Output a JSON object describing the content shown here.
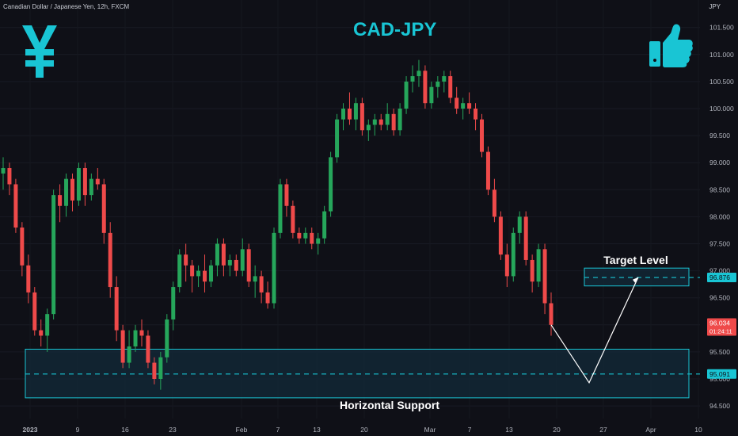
{
  "header": {
    "instrument": "Canadian Dollar / Japanese Yen, 12h, FXCM",
    "currency": "JPY",
    "title": "CAD-JPY"
  },
  "icons": {
    "left": "yen-icon",
    "right": "thumbs-up-icon"
  },
  "colors": {
    "bull": "#26a65b",
    "bear": "#ef4a4a",
    "accent": "#19c5d4",
    "box_fill": "#132a3a",
    "background": "#0f1017"
  },
  "annotations": {
    "target_label": "Target Level",
    "support_label": "Horizontal Support",
    "target_price": "96.876",
    "support_price": "95.091",
    "current_price": "96.034",
    "current_time": "01:24:11"
  },
  "chart_data": {
    "type": "candlestick",
    "y_ticks": [
      "101.500",
      "101.000",
      "100.500",
      "100.000",
      "99.500",
      "99.000",
      "98.500",
      "98.000",
      "97.500",
      "97.000",
      "96.500",
      "96.000",
      "95.500",
      "95.000",
      "94.500"
    ],
    "ylim": [
      94.3,
      101.9
    ],
    "x_ticks": [
      "2023",
      "9",
      "16",
      "23",
      "Feb",
      "7",
      "13",
      "20",
      "Mar",
      "7",
      "13",
      "20",
      "27",
      "Apr",
      "10"
    ],
    "target_zone": [
      96.72,
      97.05
    ],
    "support_zone": [
      94.65,
      95.55
    ],
    "target_price": 96.876,
    "support_price": 95.091,
    "current_price": 96.034,
    "projection": [
      [
        96.0,
        95.0
      ],
      [
        94.93,
        97.1
      ],
      [
        96.88,
        96.88
      ]
    ],
    "candles": [
      [
        98.8,
        99.1,
        98.5,
        98.9
      ],
      [
        98.9,
        99.0,
        98.4,
        98.6
      ],
      [
        98.6,
        98.7,
        97.7,
        97.8
      ],
      [
        97.8,
        97.9,
        96.9,
        97.1
      ],
      [
        97.1,
        97.3,
        96.4,
        96.6
      ],
      [
        96.6,
        96.7,
        95.8,
        95.9
      ],
      [
        95.9,
        96.1,
        95.6,
        95.8
      ],
      [
        95.8,
        96.3,
        95.5,
        96.2
      ],
      [
        96.2,
        98.5,
        96.1,
        98.4
      ],
      [
        98.4,
        98.6,
        97.9,
        98.2
      ],
      [
        98.2,
        98.8,
        98.0,
        98.7
      ],
      [
        98.7,
        98.8,
        98.1,
        98.3
      ],
      [
        98.3,
        99.0,
        98.2,
        98.9
      ],
      [
        98.9,
        99.0,
        98.2,
        98.4
      ],
      [
        98.4,
        98.8,
        98.3,
        98.7
      ],
      [
        98.7,
        98.9,
        98.5,
        98.6
      ],
      [
        98.6,
        98.7,
        97.5,
        97.7
      ],
      [
        97.7,
        97.9,
        96.5,
        96.7
      ],
      [
        96.7,
        96.9,
        95.7,
        95.9
      ],
      [
        95.9,
        96.0,
        95.2,
        95.3
      ],
      [
        95.3,
        95.9,
        95.2,
        95.6
      ],
      [
        95.6,
        96.0,
        95.5,
        95.9
      ],
      [
        95.9,
        96.1,
        95.6,
        95.8
      ],
      [
        95.8,
        95.9,
        95.2,
        95.3
      ],
      [
        95.3,
        95.4,
        94.9,
        95.0
      ],
      [
        95.0,
        95.5,
        94.8,
        95.4
      ],
      [
        95.4,
        96.2,
        95.3,
        96.1
      ],
      [
        96.1,
        96.8,
        95.9,
        96.7
      ],
      [
        96.7,
        97.4,
        96.6,
        97.3
      ],
      [
        97.3,
        97.5,
        96.8,
        97.1
      ],
      [
        97.1,
        97.2,
        96.6,
        96.9
      ],
      [
        96.9,
        97.1,
        96.7,
        97.0
      ],
      [
        97.0,
        97.3,
        96.6,
        96.8
      ],
      [
        96.8,
        97.2,
        96.7,
        97.1
      ],
      [
        97.1,
        97.6,
        96.9,
        97.5
      ],
      [
        97.5,
        97.6,
        96.9,
        97.1
      ],
      [
        97.1,
        97.3,
        96.9,
        97.2
      ],
      [
        97.2,
        97.3,
        96.9,
        97.0
      ],
      [
        97.0,
        97.6,
        96.9,
        97.4
      ],
      [
        97.4,
        97.5,
        96.7,
        96.8
      ],
      [
        96.8,
        97.1,
        96.5,
        96.9
      ],
      [
        96.9,
        97.0,
        96.4,
        96.6
      ],
      [
        96.6,
        96.8,
        96.3,
        96.4
      ],
      [
        96.4,
        97.8,
        96.3,
        97.7
      ],
      [
        97.7,
        98.7,
        97.6,
        98.6
      ],
      [
        98.6,
        98.7,
        98.0,
        98.2
      ],
      [
        98.2,
        98.3,
        97.6,
        97.7
      ],
      [
        97.7,
        97.8,
        97.5,
        97.6
      ],
      [
        97.6,
        97.8,
        97.5,
        97.7
      ],
      [
        97.7,
        97.8,
        97.4,
        97.5
      ],
      [
        97.5,
        97.7,
        97.3,
        97.6
      ],
      [
        97.6,
        98.2,
        97.5,
        98.1
      ],
      [
        98.1,
        99.2,
        98.0,
        99.1
      ],
      [
        99.1,
        99.9,
        99.0,
        99.8
      ],
      [
        99.8,
        100.1,
        99.6,
        100.0
      ],
      [
        100.0,
        100.3,
        99.7,
        99.8
      ],
      [
        99.8,
        100.2,
        99.6,
        100.1
      ],
      [
        100.1,
        100.2,
        99.5,
        99.6
      ],
      [
        99.6,
        99.8,
        99.4,
        99.7
      ],
      [
        99.7,
        99.9,
        99.5,
        99.8
      ],
      [
        99.8,
        99.9,
        99.6,
        99.7
      ],
      [
        99.7,
        100.1,
        99.6,
        99.9
      ],
      [
        99.9,
        100.0,
        99.5,
        99.6
      ],
      [
        99.6,
        100.1,
        99.5,
        100.0
      ],
      [
        100.0,
        100.6,
        99.9,
        100.5
      ],
      [
        100.5,
        100.8,
        100.3,
        100.6
      ],
      [
        100.6,
        100.9,
        100.4,
        100.7
      ],
      [
        100.7,
        100.8,
        100.0,
        100.1
      ],
      [
        100.1,
        100.5,
        100.0,
        100.4
      ],
      [
        100.4,
        100.6,
        100.2,
        100.5
      ],
      [
        100.5,
        100.7,
        100.3,
        100.6
      ],
      [
        100.6,
        100.7,
        100.1,
        100.2
      ],
      [
        100.2,
        100.4,
        99.9,
        100.0
      ],
      [
        100.0,
        100.2,
        99.8,
        100.1
      ],
      [
        100.1,
        100.3,
        99.9,
        100.0
      ],
      [
        100.0,
        100.1,
        99.6,
        99.8
      ],
      [
        99.8,
        99.9,
        99.1,
        99.2
      ],
      [
        99.2,
        99.3,
        98.4,
        98.5
      ],
      [
        98.5,
        98.7,
        97.9,
        98.0
      ],
      [
        98.0,
        98.1,
        97.2,
        97.3
      ],
      [
        97.3,
        97.5,
        96.7,
        96.9
      ],
      [
        96.9,
        97.8,
        96.8,
        97.7
      ],
      [
        97.7,
        98.1,
        97.5,
        98.0
      ],
      [
        98.0,
        98.1,
        97.1,
        97.2
      ],
      [
        97.2,
        97.3,
        96.6,
        96.8
      ],
      [
        96.8,
        97.5,
        96.7,
        97.4
      ],
      [
        97.4,
        97.5,
        96.2,
        96.4
      ],
      [
        96.4,
        96.6,
        95.8,
        96.0
      ]
    ]
  }
}
